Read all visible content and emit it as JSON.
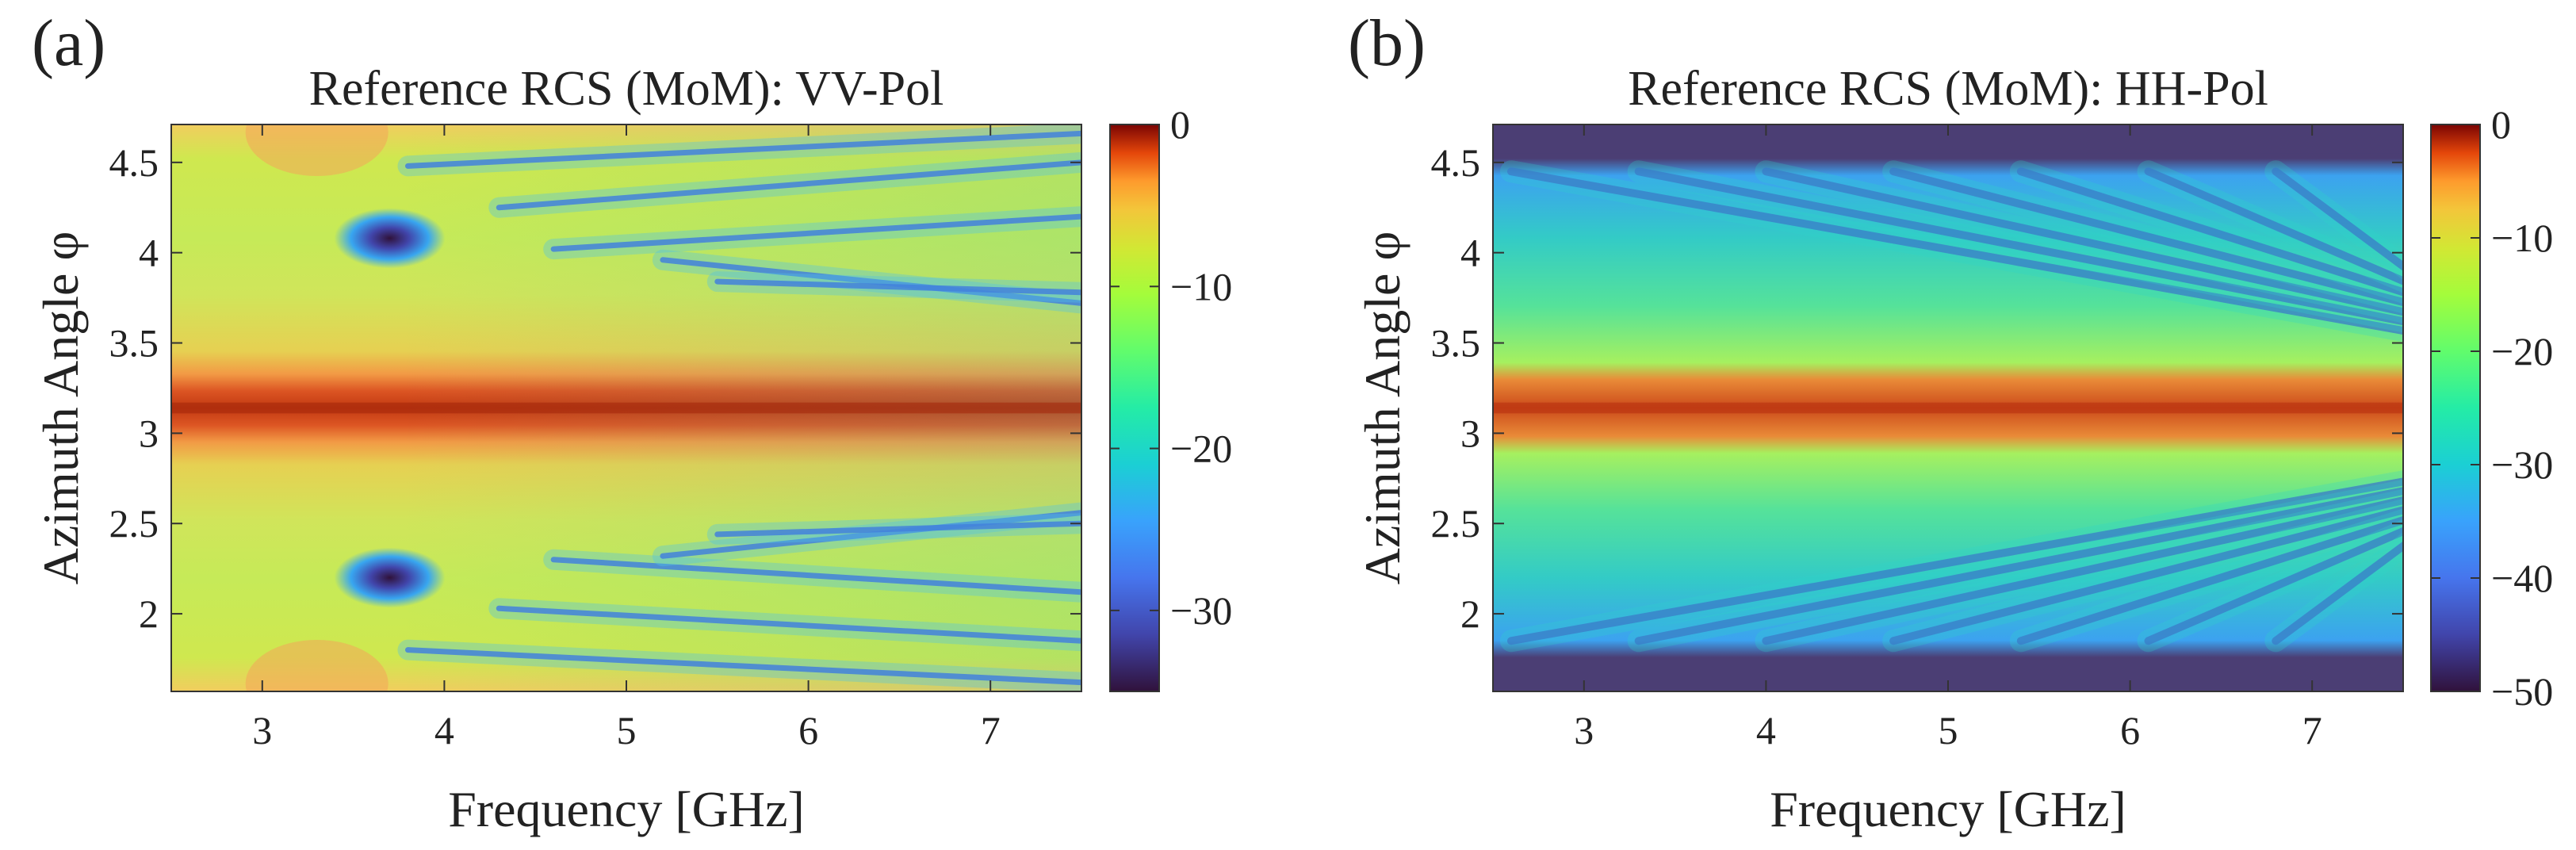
{
  "chart_data": [
    {
      "type": "heatmap",
      "panel_label": "(a)",
      "title": "Reference RCS (MoM): VV-Pol",
      "xlabel": "Frequency [GHz]",
      "ylabel": "Azimuth Angle φ",
      "xlim": [
        2.5,
        7.5
      ],
      "ylim": [
        1.57,
        4.71
      ],
      "xticks": [
        3,
        4,
        5,
        6,
        7
      ],
      "xtick_labels": [
        "3",
        "4",
        "5",
        "6",
        "7"
      ],
      "yticks": [
        2,
        2.5,
        3,
        3.5,
        4,
        4.5
      ],
      "ytick_labels": [
        "2",
        "2.5",
        "3",
        "3.5",
        "4",
        "4.5"
      ],
      "colorbar": {
        "range": [
          -35,
          0
        ],
        "ticks": [
          0,
          -10,
          -20,
          -30
        ],
        "tick_labels": [
          "0",
          "−10",
          "−20",
          "−30"
        ],
        "colormap": "turbo"
      },
      "features": {
        "specular_peak_phi": 3.14,
        "background_level_db": -14,
        "deep_nulls": [
          {
            "freq_ghz": 3.7,
            "phi": 4.08
          },
          {
            "freq_ghz": 3.7,
            "phi": 2.2
          }
        ]
      }
    },
    {
      "type": "heatmap",
      "panel_label": "(b)",
      "title": "Reference RCS (MoM): HH-Pol",
      "xlabel": "Frequency [GHz]",
      "ylabel": "Azimuth Angle φ",
      "xlim": [
        2.5,
        7.5
      ],
      "ylim": [
        1.57,
        4.71
      ],
      "xticks": [
        3,
        4,
        5,
        6,
        7
      ],
      "xtick_labels": [
        "3",
        "4",
        "5",
        "6",
        "7"
      ],
      "yticks": [
        2,
        2.5,
        3,
        3.5,
        4,
        4.5
      ],
      "ytick_labels": [
        "2",
        "2.5",
        "3",
        "3.5",
        "4",
        "4.5"
      ],
      "colorbar": {
        "range": [
          -50,
          0
        ],
        "ticks": [
          0,
          -10,
          -20,
          -30,
          -40,
          -50
        ],
        "tick_labels": [
          "0",
          "−10",
          "−20",
          "−30",
          "−40",
          "−50"
        ],
        "colormap": "turbo"
      },
      "features": {
        "specular_peak_phi": 3.14,
        "floor_level_db": -50,
        "edge_cutoff_phi": [
          1.75,
          4.55
        ]
      }
    }
  ]
}
